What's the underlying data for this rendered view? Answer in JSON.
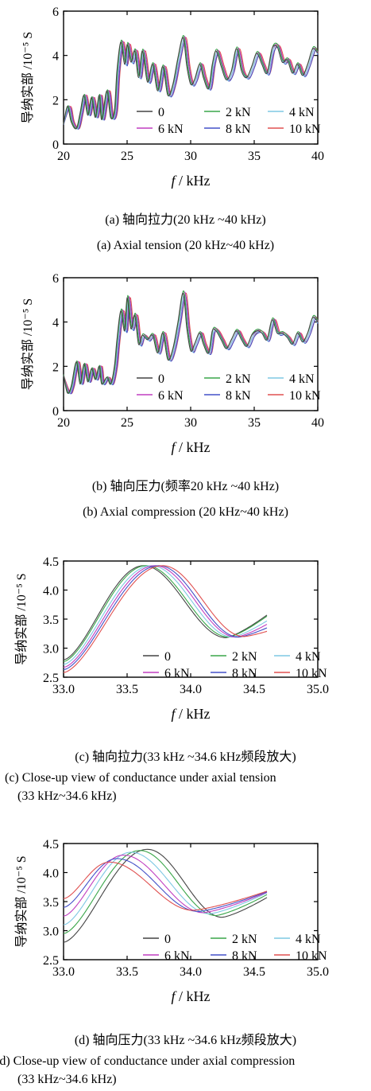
{
  "chart_data": [
    {
      "type": "line",
      "ylabel": "导纳实部 /10⁻⁵ S",
      "xlabel_italic": "f",
      "xlabel_rest": " / kHz",
      "xlim": [
        20,
        40
      ],
      "ylim": [
        0,
        6
      ],
      "xticks": [
        "20",
        "25",
        "30",
        "35",
        "40"
      ],
      "yticks": [
        "0",
        "2",
        "4",
        "6"
      ],
      "caption_cn": "(a)  轴向拉力(20 kHz ~40 kHz)",
      "caption_en": "(a)  Axial tension (20 kHz~40 kHz)",
      "legend": [
        "0",
        "2 kN",
        "4 kN",
        "6 kN",
        "8 kN",
        "10 kN"
      ],
      "series_colors": [
        "#444444",
        "#3aa64a",
        "#7ec8e3",
        "#c03fc0",
        "#4450c8",
        "#e05050"
      ],
      "x": [
        20,
        20.3,
        20.6,
        21,
        21.3,
        21.6,
        21.9,
        22.2,
        22.5,
        22.8,
        23,
        23.4,
        23.7,
        24,
        24.2,
        24.5,
        24.8,
        25,
        25.3,
        25.6,
        25.9,
        26.2,
        26.6,
        27,
        27.4,
        27.8,
        28.2,
        28.6,
        29,
        29.4,
        29.7,
        30,
        30.3,
        30.7,
        31,
        31.4,
        31.7,
        32,
        32.4,
        32.8,
        33.2,
        33.6,
        34,
        34.4,
        34.8,
        35.2,
        35.6,
        36,
        36.4,
        36.8,
        37.2,
        37.6,
        38,
        38.4,
        38.8,
        39.2,
        39.6,
        40
      ],
      "series": [
        {
          "name": "0",
          "values": [
            0.9,
            1.7,
            1.0,
            0.7,
            1.4,
            2.2,
            1.3,
            2.1,
            1.2,
            2.2,
            1.1,
            2.4,
            1.2,
            1.5,
            3.3,
            4.6,
            3.6,
            4.5,
            3.7,
            4.2,
            3.0,
            4.2,
            2.8,
            3.6,
            2.4,
            3.5,
            2.2,
            2.7,
            3.9,
            4.8,
            3.5,
            2.7,
            2.9,
            3.6,
            3.0,
            2.5,
            3.6,
            4.2,
            3.5,
            2.9,
            3.3,
            4.3,
            3.3,
            3.0,
            3.5,
            4.1,
            3.6,
            3.2,
            4.3,
            4.4,
            3.7,
            3.8,
            3.2,
            3.6,
            3.1,
            3.6,
            4.3,
            4.1
          ]
        }
      ]
    },
    {
      "type": "line",
      "ylabel": "导纳实部 /10⁻⁵ S",
      "xlabel_italic": "f",
      "xlabel_rest": " / kHz",
      "xlim": [
        20,
        40
      ],
      "ylim": [
        0,
        6
      ],
      "xticks": [
        "20",
        "25",
        "30",
        "35",
        "40"
      ],
      "yticks": [
        "0",
        "2",
        "4",
        "6"
      ],
      "caption_cn": "(b)  轴向压力(频率20 kHz ~40 kHz)",
      "caption_en": "(b) Axial compression (20 kHz~40 kHz)",
      "legend": [
        "0",
        "2 kN",
        "4 kN",
        "6 kN",
        "8 kN",
        "10 kN"
      ],
      "series_colors": [
        "#444444",
        "#3aa64a",
        "#7ec8e3",
        "#c03fc0",
        "#4450c8",
        "#e05050"
      ],
      "x": [
        20,
        20.3,
        20.6,
        21,
        21.3,
        21.6,
        21.9,
        22.2,
        22.5,
        22.8,
        23,
        23.4,
        23.7,
        24,
        24.2,
        24.5,
        24.8,
        25,
        25.3,
        25.6,
        25.9,
        26.2,
        26.6,
        27,
        27.4,
        27.8,
        28.2,
        28.6,
        29,
        29.4,
        29.7,
        30,
        30.3,
        30.7,
        31,
        31.4,
        31.7,
        32,
        32.4,
        32.8,
        33.2,
        33.6,
        34,
        34.4,
        34.8,
        35.2,
        35.6,
        36,
        36.4,
        36.8,
        37.2,
        37.6,
        38,
        38.4,
        38.8,
        39.2,
        39.6,
        40
      ],
      "series": [
        {
          "name": "0",
          "values": [
            1.6,
            0.8,
            1.1,
            2.2,
            1.2,
            2.1,
            1.3,
            1.9,
            1.4,
            2.0,
            1.2,
            1.5,
            1.2,
            2.0,
            3.2,
            4.5,
            3.6,
            5.1,
            3.7,
            4.3,
            3.0,
            3.4,
            3.2,
            3.4,
            2.6,
            3.5,
            2.3,
            2.8,
            4.0,
            5.3,
            3.7,
            2.7,
            3.0,
            3.5,
            3.0,
            2.6,
            3.6,
            3.6,
            3.2,
            2.8,
            3.2,
            3.6,
            3.2,
            2.9,
            3.4,
            3.6,
            3.5,
            3.2,
            4.1,
            3.5,
            3.5,
            3.3,
            3.0,
            3.5,
            3.1,
            3.5,
            4.2,
            4.0
          ]
        }
      ]
    },
    {
      "type": "line",
      "ylabel": "导纳实部 /10⁻⁵ S",
      "xlabel_italic": "f",
      "xlabel_rest": " / kHz",
      "xlim": [
        33.0,
        35.0
      ],
      "ylim": [
        2.5,
        4.5
      ],
      "xticks": [
        "33.0",
        "33.5",
        "34.0",
        "34.5",
        "35.0"
      ],
      "yticks": [
        "2.5",
        "3.0",
        "3.5",
        "4.0",
        "4.5"
      ],
      "caption_cn": "(c) 轴向拉力(33 kHz ~34.6 kHz频段放大)",
      "caption_en_1": "(c)  Close-up view of conductance under axial tension",
      "caption_en_2": "(33 kHz~34.6 kHz)",
      "legend": [
        "0",
        "2 kN",
        "4 kN",
        "6 kN",
        "8 kN",
        "10 kN"
      ],
      "series_colors": [
        "#444444",
        "#3aa64a",
        "#7ec8e3",
        "#c03fc0",
        "#4450c8",
        "#e05050"
      ],
      "x_min": 33.0,
      "x_max": 34.6,
      "peak_value": 4.42,
      "series": [
        {
          "name": "0",
          "peak_x": 33.63,
          "start_y": 2.8,
          "min_x": 34.28,
          "min_y": 3.18,
          "end_y": 3.57
        },
        {
          "name": "2 kN",
          "peak_x": 33.65,
          "start_y": 2.77,
          "min_x": 34.3,
          "min_y": 3.19,
          "end_y": 3.55
        },
        {
          "name": "4 kN",
          "peak_x": 33.69,
          "start_y": 2.72,
          "min_x": 34.33,
          "min_y": 3.19,
          "end_y": 3.47
        },
        {
          "name": "6 kN",
          "peak_x": 33.72,
          "start_y": 2.67,
          "min_x": 34.36,
          "min_y": 3.19,
          "end_y": 3.41
        },
        {
          "name": "8 kN",
          "peak_x": 33.75,
          "start_y": 2.63,
          "min_x": 34.38,
          "min_y": 3.19,
          "end_y": 3.35
        },
        {
          "name": "10 kN",
          "peak_x": 33.78,
          "start_y": 2.58,
          "min_x": 34.42,
          "min_y": 3.2,
          "end_y": 3.29
        }
      ]
    },
    {
      "type": "line",
      "ylabel": "导纳实部 /10⁻⁵ S",
      "xlabel_italic": "f",
      "xlabel_rest": " / kHz",
      "xlim": [
        33.0,
        35.0
      ],
      "ylim": [
        2.5,
        4.5
      ],
      "xticks": [
        "33.0",
        "33.5",
        "34.0",
        "34.5",
        "35.0"
      ],
      "yticks": [
        "2.5",
        "3.0",
        "3.5",
        "4.0",
        "4.5"
      ],
      "caption_cn": "(d) 轴向压力(33 kHz ~34.6 kHz频段放大)",
      "caption_en_1": "(d)  Close-up view of conductance under axial compression",
      "caption_en_2": "(33 kHz~34.6 kHz)",
      "legend": [
        "0",
        "2 kN",
        "4 kN",
        "6 kN",
        "8 kN",
        "10 kN"
      ],
      "series_colors": [
        "#444444",
        "#3aa64a",
        "#7ec8e3",
        "#c03fc0",
        "#4450c8",
        "#e05050"
      ],
      "x_min": 33.0,
      "x_max": 34.6,
      "series": [
        {
          "name": "0",
          "peak_x": 33.66,
          "peak_y": 4.4,
          "start_y": 2.8,
          "min_x": 34.25,
          "min_y": 3.23,
          "end_y": 3.57
        },
        {
          "name": "2 kN",
          "peak_x": 33.6,
          "peak_y": 4.38,
          "start_y": 2.95,
          "min_x": 34.2,
          "min_y": 3.26,
          "end_y": 3.62
        },
        {
          "name": "4 kN",
          "peak_x": 33.53,
          "peak_y": 4.35,
          "start_y": 3.1,
          "min_x": 34.15,
          "min_y": 3.29,
          "end_y": 3.65
        },
        {
          "name": "6 kN",
          "peak_x": 33.47,
          "peak_y": 4.3,
          "start_y": 3.25,
          "min_x": 34.1,
          "min_y": 3.31,
          "end_y": 3.66
        },
        {
          "name": "8 kN",
          "peak_x": 33.42,
          "peak_y": 4.24,
          "start_y": 3.4,
          "min_x": 34.06,
          "min_y": 3.33,
          "end_y": 3.67
        },
        {
          "name": "10 kN",
          "peak_x": 33.36,
          "peak_y": 4.18,
          "start_y": 3.55,
          "min_x": 34.02,
          "min_y": 3.35,
          "end_y": 3.68
        }
      ]
    }
  ]
}
